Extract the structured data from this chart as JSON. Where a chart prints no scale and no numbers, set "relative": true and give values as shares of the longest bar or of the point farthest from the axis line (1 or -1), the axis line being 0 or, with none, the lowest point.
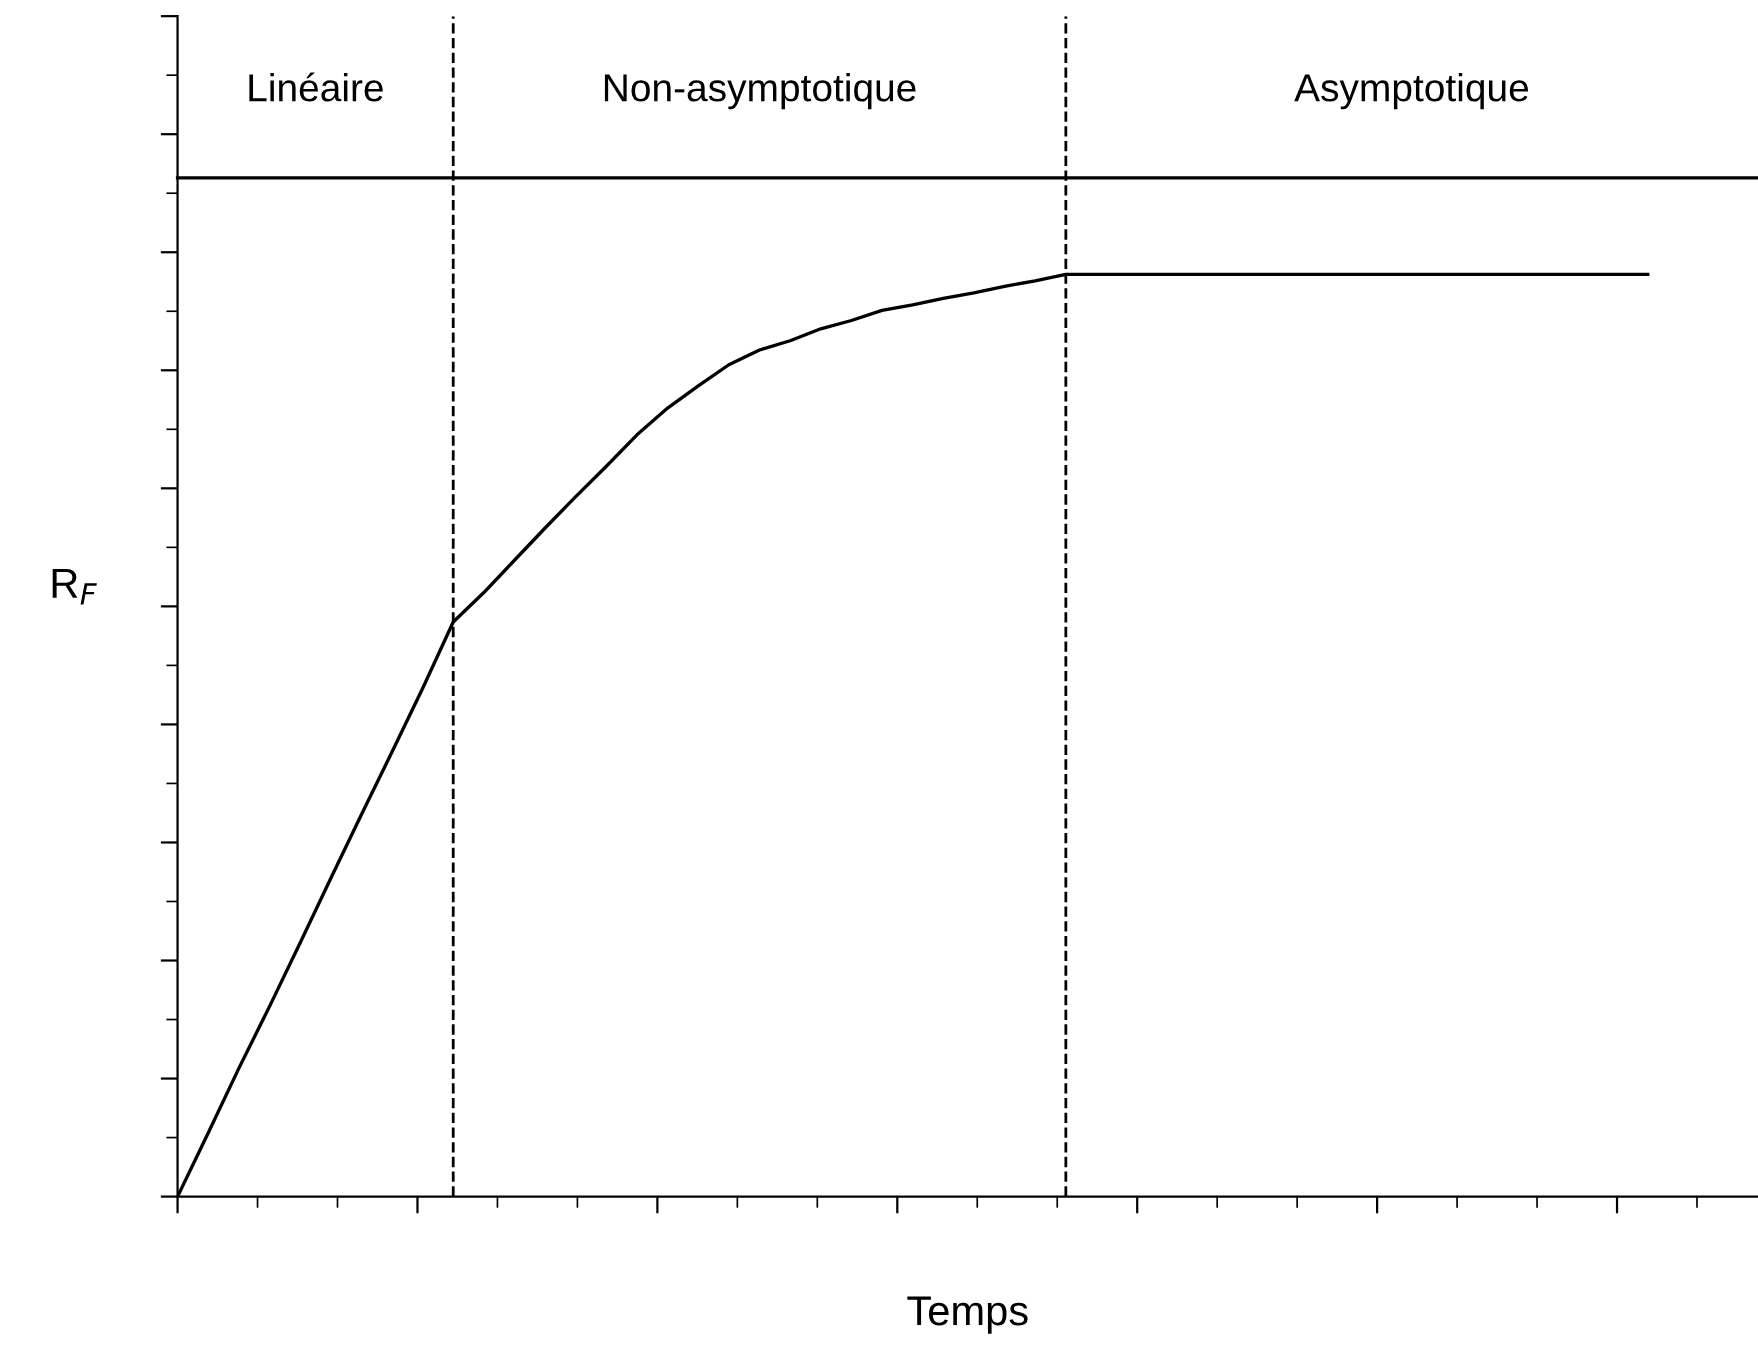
{
  "chart_data": {
    "type": "line",
    "relative": true,
    "xlabel": "Temps",
    "ylabel": "R$_{F}$",
    "categories": [
      null,
      null,
      null,
      null,
      null,
      null,
      null,
      null,
      null,
      null,
      null,
      null,
      null,
      null,
      null,
      null,
      null,
      null,
      null,
      null,
      null,
      null,
      null,
      null,
      null,
      null,
      null,
      null,
      null,
      null,
      null,
      null,
      null,
      null,
      null,
      null,
      null,
      null,
      null,
      null,
      null,
      null,
      null,
      null,
      null,
      null,
      null,
      null,
      null
    ],
    "series": [
      {
        "color": "#000000",
        "values": [
          0,
          0.069,
          0.139,
          0.206,
          0.275,
          0.345,
          0.414,
          0.482,
          0.551,
          0.623,
          0.655,
          0.69,
          0.725,
          0.759,
          0.792,
          0.826,
          0.855,
          0.879,
          0.902,
          0.918,
          0.928,
          0.941,
          0.95,
          0.961,
          0.967,
          0.974,
          0.98,
          0.987,
          0.993,
          1,
          1,
          1,
          1,
          1,
          1,
          1,
          1,
          1,
          1,
          1,
          1,
          1,
          1,
          1,
          1,
          1,
          1,
          1,
          1
        ]
      }
    ],
    "tick_labels": false,
    "annotations": [
      "Linéaire",
      "Non-asymptotique",
      "Asymptotique"
    ],
    "grid": false,
    "legend": false,
    "marker": "none",
    "line_style": "solid"
  }
}
